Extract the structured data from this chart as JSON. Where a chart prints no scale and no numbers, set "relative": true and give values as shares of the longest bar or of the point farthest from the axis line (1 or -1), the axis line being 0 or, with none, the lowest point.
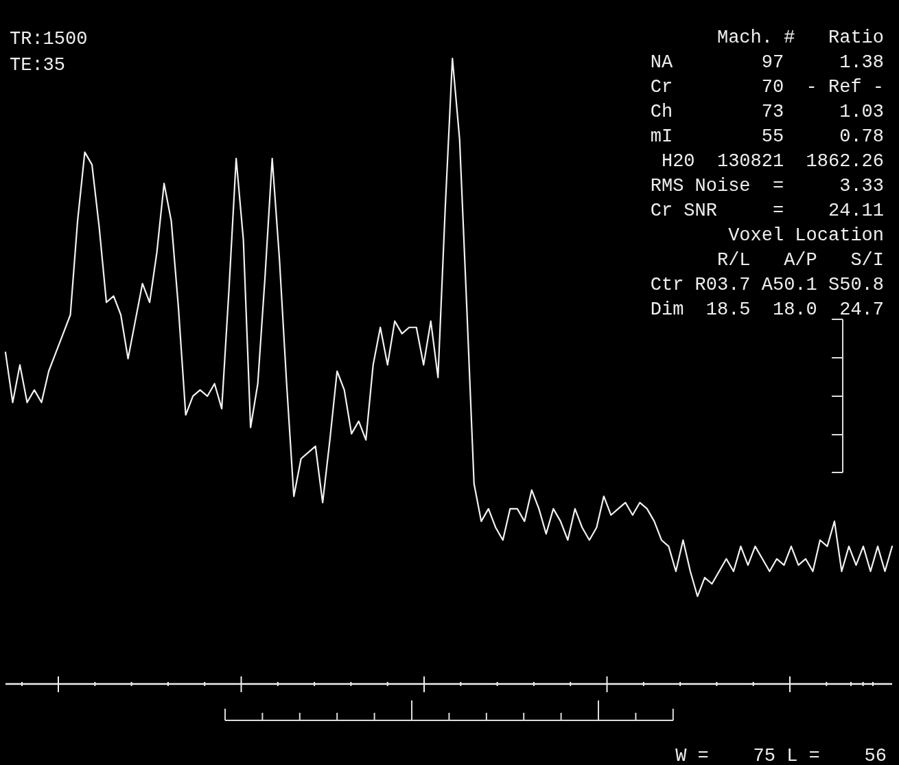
{
  "chart_data": {
    "type": "line",
    "relative": true,
    "categories": [
      null,
      null,
      null,
      null,
      null,
      null,
      null,
      null,
      null,
      null,
      null,
      null,
      null,
      null,
      null,
      null,
      null,
      null,
      null,
      null,
      null,
      null,
      null,
      null,
      null,
      null,
      null,
      null,
      null,
      null,
      null,
      null,
      null,
      null,
      null,
      null,
      null,
      null,
      null,
      null,
      null,
      null,
      null,
      null,
      null,
      null,
      null,
      null,
      null,
      null,
      null,
      null,
      null,
      null,
      null,
      null,
      null,
      null,
      null,
      null,
      null,
      null,
      null,
      null,
      null,
      null,
      null,
      null,
      null,
      null,
      null,
      null,
      null,
      null,
      null,
      null,
      null,
      null,
      null,
      null,
      null,
      null,
      null,
      null,
      null,
      null,
      null,
      null,
      null,
      null,
      null,
      null,
      null,
      null,
      null,
      null,
      null,
      null,
      null,
      null,
      null,
      null,
      null,
      null,
      null,
      null,
      null,
      null,
      null,
      null,
      null,
      null,
      null,
      null,
      null,
      null,
      null,
      null,
      null,
      null,
      null,
      null,
      null,
      null
    ],
    "series": [
      {
        "color": "#f2f2f2",
        "values": [
          0.53,
          0.45,
          0.51,
          0.45,
          0.47,
          0.45,
          0.5,
          0.53,
          0.56,
          0.59,
          0.74,
          0.85,
          0.83,
          0.73,
          0.61,
          0.62,
          0.59,
          0.52,
          0.58,
          0.64,
          0.61,
          0.69,
          0.8,
          0.74,
          0.6,
          0.43,
          0.46,
          0.47,
          0.46,
          0.48,
          0.44,
          0.63,
          0.84,
          0.71,
          0.41,
          0.48,
          0.65,
          0.84,
          0.68,
          0.48,
          0.3,
          0.36,
          0.37,
          0.38,
          0.29,
          0.39,
          0.5,
          0.47,
          0.4,
          0.42,
          0.39,
          0.51,
          0.57,
          0.51,
          0.58,
          0.56,
          0.57,
          0.57,
          0.51,
          0.58,
          0.49,
          0.76,
          1,
          0.87,
          0.6,
          0.32,
          0.26,
          0.28,
          0.25,
          0.23,
          0.28,
          0.28,
          0.26,
          0.31,
          0.28,
          0.24,
          0.28,
          0.26,
          0.23,
          0.28,
          0.25,
          0.23,
          0.25,
          0.3,
          0.27,
          0.28,
          0.29,
          0.27,
          0.29,
          0.28,
          0.26,
          0.23,
          0.22,
          0.18,
          0.23,
          0.18,
          0.14,
          0.17,
          0.16,
          0.18,
          0.2,
          0.18,
          0.22,
          0.19,
          0.22,
          0.2,
          0.18,
          0.2,
          0.19,
          0.22,
          0.19,
          0.2,
          0.18,
          0.23,
          0.22,
          0.26,
          0.18,
          0.22,
          0.19,
          0.22,
          0.18,
          0.22,
          0.18,
          0.22
        ]
      }
    ],
    "annotations": [
      "TR:1500",
      "TE:35",
      "Mach. #   Ratio",
      "NA        97     1.38",
      "Cr        70  - Ref -",
      "Ch        73     1.03",
      "mI        55     0.78",
      "H20  130821  1862.26",
      "RMS Noise  =     3.33",
      "Cr SNR     =    24.11",
      "Voxel Location",
      "R/L   A/P   S/I",
      "Ctr R03.7 A50.1 S50.8",
      "Dim  18.5  18.0  24.7",
      "W =    75 L =    56"
    ]
  }
}
